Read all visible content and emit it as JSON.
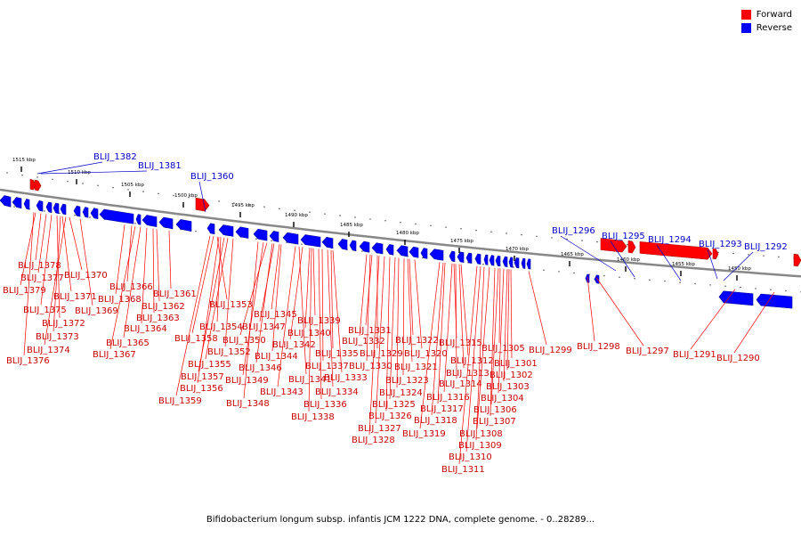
{
  "legend": {
    "forward_label": "Forward",
    "reverse_label": "Reverse",
    "forward_color": "#ff0000",
    "reverse_color": "#0000ff"
  },
  "colors": {
    "forward_dark": "#b00000",
    "reverse_dark": "#0000aa",
    "backbone": "#888888",
    "forward_label": "#cc0000",
    "reverse_label": "#0000cc"
  },
  "footer": "Bifidobacterium longum subsp. infantis JCM 1222 DNA, complete genome. - 0..28289...",
  "ruler": [
    "1515 kbp",
    "1510 kbp",
    "1505 kbp",
    "1500 kbp",
    "1495 kbp",
    "1490 kbp",
    "1485 kbp",
    "1480 kbp",
    "1475 kbp",
    "1470 kbp",
    "1465 kbp",
    "1460 kbp",
    "1455 kbp",
    "1450 kbp"
  ],
  "reverse_genes": [
    "BLIJ_1382",
    "BLIJ_1381",
    "BLIJ_1360",
    "BLIJ_1296",
    "BLIJ_1295",
    "BLIJ_1294",
    "BLIJ_1293",
    "BLIJ_1292"
  ],
  "forward_genes": [
    "BLIJ_1378",
    "BLIJ_1377",
    "BLIJ_1379",
    "BLIJ_1370",
    "BLIJ_1371",
    "BLIJ_1375",
    "BLIJ_1372",
    "BLIJ_1373",
    "BLIJ_1374",
    "BLIJ_1376",
    "BLIJ_1369",
    "BLIJ_1366",
    "BLIJ_1368",
    "BLIJ_1361",
    "BLIJ_1362",
    "BLIJ_1363",
    "BLIJ_1364",
    "BLIJ_1365",
    "BLIJ_1367",
    "BLIJ_1353",
    "BLIJ_1354",
    "BLIJ_1358",
    "BLIJ_1352",
    "BLIJ_1355",
    "BLIJ_1357",
    "BLIJ_1356",
    "BLIJ_1359",
    "BLIJ_1345",
    "BLIJ_1347",
    "BLIJ_1350",
    "BLIJ_1344",
    "BLIJ_1346",
    "BLIJ_1349",
    "BLIJ_1348",
    "BLIJ_1339",
    "BLIJ_1340",
    "BLIJ_1342",
    "BLIJ_1341",
    "BLIJ_1343",
    "BLIJ_1335",
    "BLIJ_1337",
    "BLIJ_1333",
    "BLIJ_1334",
    "BLIJ_1336",
    "BLIJ_1338",
    "BLIJ_1331",
    "BLIJ_1332",
    "BLIJ_1329",
    "BLIJ_1330",
    "BLIJ_1322",
    "BLIJ_1320",
    "BLIJ_1321",
    "BLIJ_1323",
    "BLIJ_1324",
    "BLIJ_1325",
    "BLIJ_1326",
    "BLIJ_1327",
    "BLIJ_1328",
    "BLIJ_1315",
    "BLIJ_1312",
    "BLIJ_1313",
    "BLIJ_1314",
    "BLIJ_1316",
    "BLIJ_1317",
    "BLIJ_1318",
    "BLIJ_1319",
    "BLIJ_1305",
    "BLIJ_1301",
    "BLIJ_1302",
    "BLIJ_1303",
    "BLIJ_1304",
    "BLIJ_1306",
    "BLIJ_1307",
    "BLIJ_1308",
    "BLIJ_1309",
    "BLIJ_1310",
    "BLIJ_1311",
    "BLIJ_1299",
    "BLIJ_1298",
    "BLIJ_1297",
    "BLIJ_1291",
    "BLIJ_1290"
  ]
}
